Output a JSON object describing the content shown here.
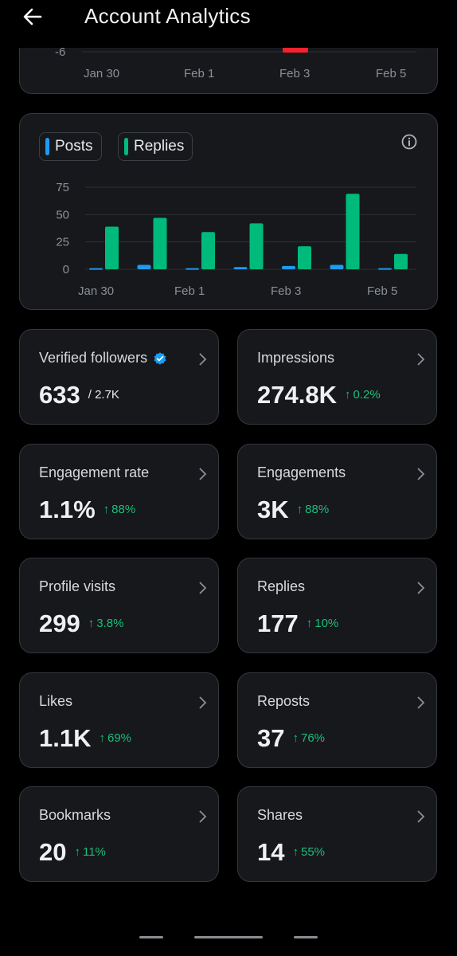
{
  "header": {
    "title": "Account Analytics",
    "back_icon": "arrow-left-icon"
  },
  "previous_chart": {
    "visible_y_tick": "-6",
    "x_labels": [
      "Jan 30",
      "Feb 1",
      "Feb 3",
      "Feb 5"
    ],
    "highlight_color": "#f4212e"
  },
  "chart_data": {
    "type": "bar",
    "x_tick_labels": [
      "Jan 30",
      "Feb 1",
      "Feb 3",
      "Feb 5"
    ],
    "y_tick_labels": [
      "75",
      "50",
      "25",
      "0"
    ],
    "ylim": [
      0,
      75
    ],
    "grid": true,
    "legend_position": "top-left",
    "series": [
      {
        "name": "Posts",
        "color": "#1d9bf0",
        "values": [
          1,
          4,
          1,
          2,
          3,
          4,
          1
        ]
      },
      {
        "name": "Replies",
        "color": "#00ba7c",
        "values": [
          39,
          47,
          34,
          42,
          21,
          69,
          14
        ]
      }
    ]
  },
  "legend": {
    "posts": "Posts",
    "replies": "Replies",
    "info_icon": "info-circle-icon"
  },
  "stats": [
    {
      "label": "Verified followers",
      "value": "633",
      "total": "/ 2.7K",
      "icon": "verified-badge-icon"
    },
    {
      "label": "Impressions",
      "value": "274.8K",
      "change": "0.2%"
    },
    {
      "label": "Engagement rate",
      "value": "1.1%",
      "change": "88%"
    },
    {
      "label": "Engagements",
      "value": "3K",
      "change": "88%"
    },
    {
      "label": "Profile visits",
      "value": "299",
      "change": "3.8%"
    },
    {
      "label": "Replies",
      "value": "177",
      "change": "10%"
    },
    {
      "label": "Likes",
      "value": "1.1K",
      "change": "69%"
    },
    {
      "label": "Reposts",
      "value": "37",
      "change": "76%"
    },
    {
      "label": "Bookmarks",
      "value": "20",
      "change": "11%"
    },
    {
      "label": "Shares",
      "value": "14",
      "change": "55%"
    }
  ],
  "colors": {
    "background": "#000000",
    "card": "#16181c",
    "positive": "#1dbe78",
    "verified": "#1d9bf0"
  }
}
